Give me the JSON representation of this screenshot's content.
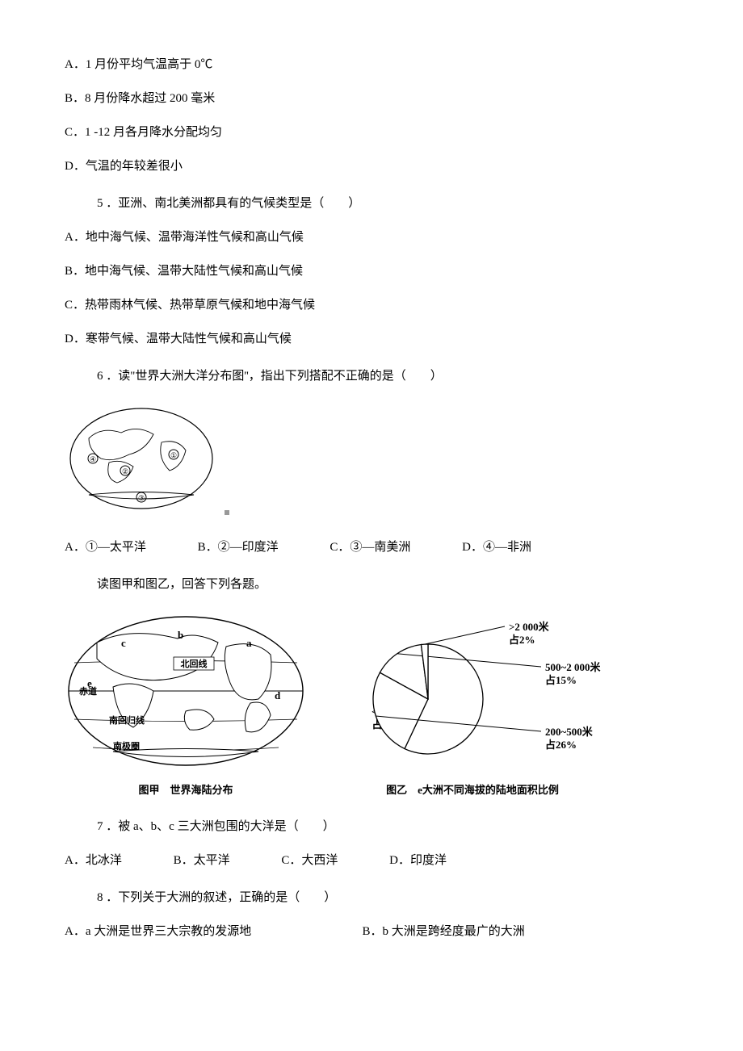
{
  "q_prev": {
    "A": "A．1 月份平均气温高于 0℃",
    "B": "B．8 月份降水超过 200 毫米",
    "C": "C．1 -12 月各月降水分配均匀",
    "D": "D．气温的年较差很小"
  },
  "q5": {
    "stem": "5 ．亚洲、南北美洲都具有的气候类型是（　　）",
    "A": "A．地中海气候、温带海洋性气候和高山气候",
    "B": "B．地中海气候、温带大陆性气候和高山气候",
    "C": "C．热带雨林气候、热带草原气候和地中海气候",
    "D": "D．寒带气候、温带大陆性气候和高山气候"
  },
  "q6": {
    "stem": "6 ．读\"世界大洲大洋分布图''，指出下列搭配不正确的是（　　）",
    "img_alt": "世界大洲大洋分布图（椭圆投影，标注①②③④）",
    "A": "A．①—太平洋",
    "B": "B．②—印度洋",
    "C": "C．③—南美洲",
    "D": "D．④—非洲"
  },
  "instr_78": "读图甲和图乙，回答下列各题。",
  "fig": {
    "map": {
      "caption": "图甲　世界海陆分布",
      "labels": {
        "tropic_n": "北回线",
        "equator": "赤道",
        "tropic_s": "南回归线",
        "antarctic": "南极圈",
        "a": "a",
        "b": "b",
        "c": "c",
        "d": "d",
        "e": "e"
      }
    },
    "pie": {
      "caption": "图乙　e大洲不同海拔的陆地面积比例",
      "slices": [
        {
          "label": "<200米",
          "sub": "占57%",
          "value": 57,
          "color": "#ffffff"
        },
        {
          "label": "200~500米",
          "sub": "占26%",
          "value": 26,
          "color": "#ffffff"
        },
        {
          "label": "500~2 000米",
          "sub": "占15%",
          "value": 15,
          "color": "#ffffff"
        },
        {
          "label": ">2 000米",
          "sub": "占2%",
          "value": 2,
          "color": "#ffffff"
        }
      ],
      "stroke": "#000000",
      "font_size": 13
    }
  },
  "q7": {
    "stem": "7 ．被 a、b、c 三大洲包围的大洋是（　　）",
    "A": "A．北冰洋",
    "B": "B．太平洋",
    "C": "C．大西洋",
    "D": "D．印度洋"
  },
  "q8": {
    "stem": "8 ．下列关于大洲的叙述，正确的是（　　）",
    "A": "A．a 大洲是世界三大宗教的发源地",
    "B": "B．b 大洲是跨经度最广的大洲"
  }
}
